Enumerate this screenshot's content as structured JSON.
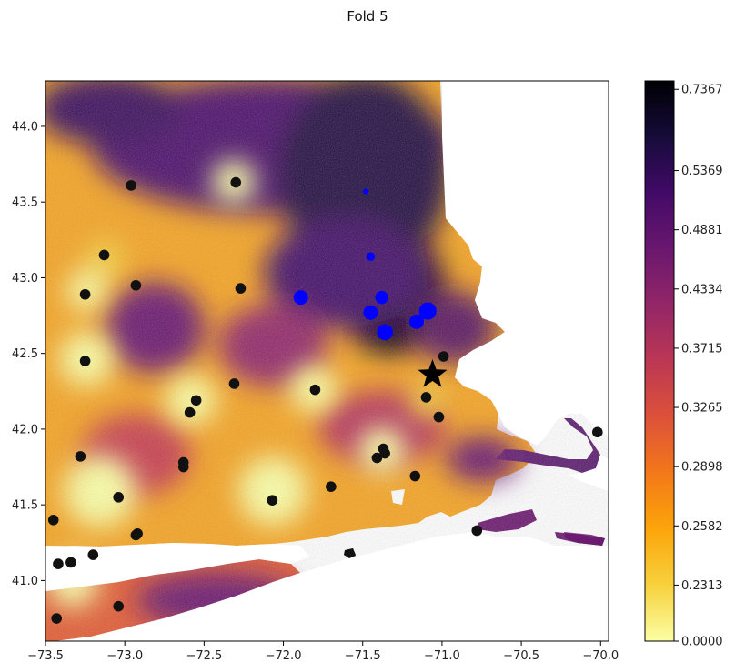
{
  "chart_data": {
    "type": "scatter",
    "title": "Fold 5",
    "xlabel": "",
    "ylabel": "",
    "xlim": [
      -73.5,
      -69.95
    ],
    "ylim": [
      40.6,
      44.3
    ],
    "x_ticks": [
      -73.5,
      -73.0,
      -72.5,
      -72.0,
      -71.5,
      -71.0,
      -70.5,
      -70.0
    ],
    "x_tick_labels": [
      "−73.5",
      "−73.0",
      "−72.5",
      "−72.0",
      "−71.5",
      "−71.0",
      "−70.5",
      "−70.0"
    ],
    "y_ticks": [
      41.0,
      41.5,
      42.0,
      42.5,
      43.0,
      43.5,
      44.0
    ],
    "y_tick_labels": [
      "41.0",
      "41.5",
      "42.0",
      "42.5",
      "43.0",
      "43.5",
      "44.0"
    ],
    "grid": false,
    "background_field": {
      "description": "interpolated surface over land area",
      "colormap": "inferno_r",
      "range": [
        0.0,
        0.7367
      ]
    },
    "colorbar": {
      "ticks": [
        0.0,
        0.2313,
        0.2582,
        0.2898,
        0.3265,
        0.3715,
        0.4334,
        0.4881,
        0.5369,
        0.7367
      ],
      "tick_labels": [
        "0.0000",
        "0.2313",
        "0.2582",
        "0.2898",
        "0.3265",
        "0.3715",
        "0.4334",
        "0.4881",
        "0.5369",
        "0.7367"
      ],
      "gradient_colors": [
        "#fcffa4",
        "#f7d13d",
        "#fca50a",
        "#f37819",
        "#dd513a",
        "#bc3754",
        "#932667",
        "#6a176e",
        "#420a68",
        "#160b39",
        "#000004"
      ]
    },
    "series": [
      {
        "color": "#111111",
        "marker": "circle",
        "points": [
          [
            -72.3,
            43.63
          ],
          [
            -72.96,
            43.61
          ],
          [
            -73.13,
            43.15
          ],
          [
            -72.93,
            42.95
          ],
          [
            -73.25,
            42.89
          ],
          [
            -72.27,
            42.93
          ],
          [
            -73.25,
            42.45
          ],
          [
            -72.31,
            42.3
          ],
          [
            -71.8,
            42.26
          ],
          [
            -72.55,
            42.19
          ],
          [
            -72.59,
            42.11
          ],
          [
            -72.63,
            41.78
          ],
          [
            -72.63,
            41.75
          ],
          [
            -73.28,
            41.82
          ],
          [
            -73.04,
            41.55
          ],
          [
            -72.07,
            41.53
          ],
          [
            -71.7,
            41.62
          ],
          [
            -71.37,
            41.87
          ],
          [
            -71.36,
            41.84
          ],
          [
            -71.41,
            41.81
          ],
          [
            -71.17,
            41.69
          ],
          [
            -71.1,
            42.21
          ],
          [
            -71.02,
            42.08
          ],
          [
            -70.99,
            42.48
          ],
          [
            -70.02,
            41.98
          ],
          [
            -70.78,
            41.33
          ],
          [
            -72.92,
            41.31
          ],
          [
            -72.93,
            41.3
          ],
          [
            -73.45,
            41.4
          ],
          [
            -73.2,
            41.17
          ],
          [
            -73.34,
            41.12
          ],
          [
            -73.42,
            41.11
          ],
          [
            -73.04,
            40.83
          ],
          [
            -73.43,
            40.75
          ]
        ]
      },
      {
        "color": "#0000ff",
        "marker": "circle",
        "points": [
          [
            -71.89,
            42.87,
            1.0
          ],
          [
            -71.38,
            42.87,
            0.9
          ],
          [
            -71.45,
            42.77,
            1.0
          ],
          [
            -71.09,
            42.78,
            1.2
          ],
          [
            -71.16,
            42.71,
            1.0
          ],
          [
            -71.36,
            42.64,
            1.1
          ],
          [
            -71.45,
            43.14,
            0.6
          ],
          [
            -71.48,
            43.57,
            0.4
          ]
        ]
      },
      {
        "color": "#000000",
        "marker": "star",
        "points": [
          [
            -71.06,
            42.36
          ]
        ]
      }
    ]
  }
}
